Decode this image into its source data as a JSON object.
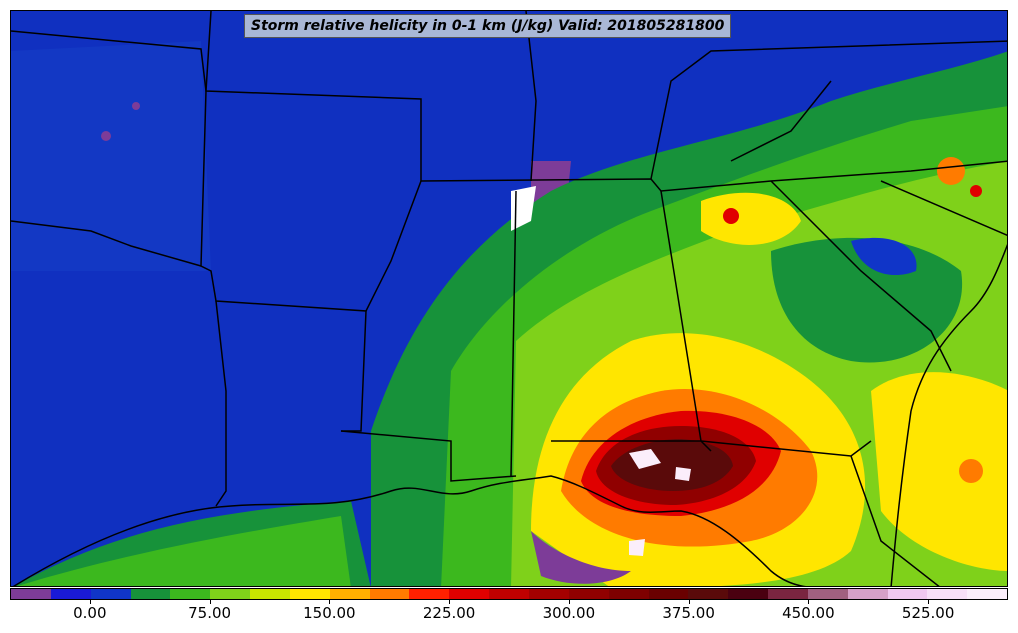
{
  "title": "Storm relative helicity in 0-1 km (J/kg) Valid: 201805281800",
  "colorbar": {
    "colors": [
      "#7d3c98",
      "#1a1ad6",
      "#1035c8",
      "#17923a",
      "#3cb81e",
      "#7fd11a",
      "#c8e600",
      "#ffe600",
      "#ffb000",
      "#ff7b00",
      "#ff2000",
      "#e00000",
      "#c00000",
      "#a40000",
      "#900000",
      "#7e0000",
      "#6a0000",
      "#5a0a0a",
      "#4a0010",
      "#7a2540",
      "#a06080",
      "#d6a0c8",
      "#f0c8f0",
      "#f7dff7",
      "#fbeefb"
    ],
    "tick_labels": [
      "0.00",
      "75.00",
      "150.00",
      "225.00",
      "300.00",
      "375.00",
      "450.00",
      "525.00"
    ],
    "tick_values": [
      0,
      75,
      150,
      225,
      300,
      375,
      450,
      525
    ],
    "range": [
      -50,
      575
    ]
  },
  "layers": {
    "background_color": "#1030c0",
    "state_boundary_color": "#000000",
    "coast_color": "#000000"
  }
}
